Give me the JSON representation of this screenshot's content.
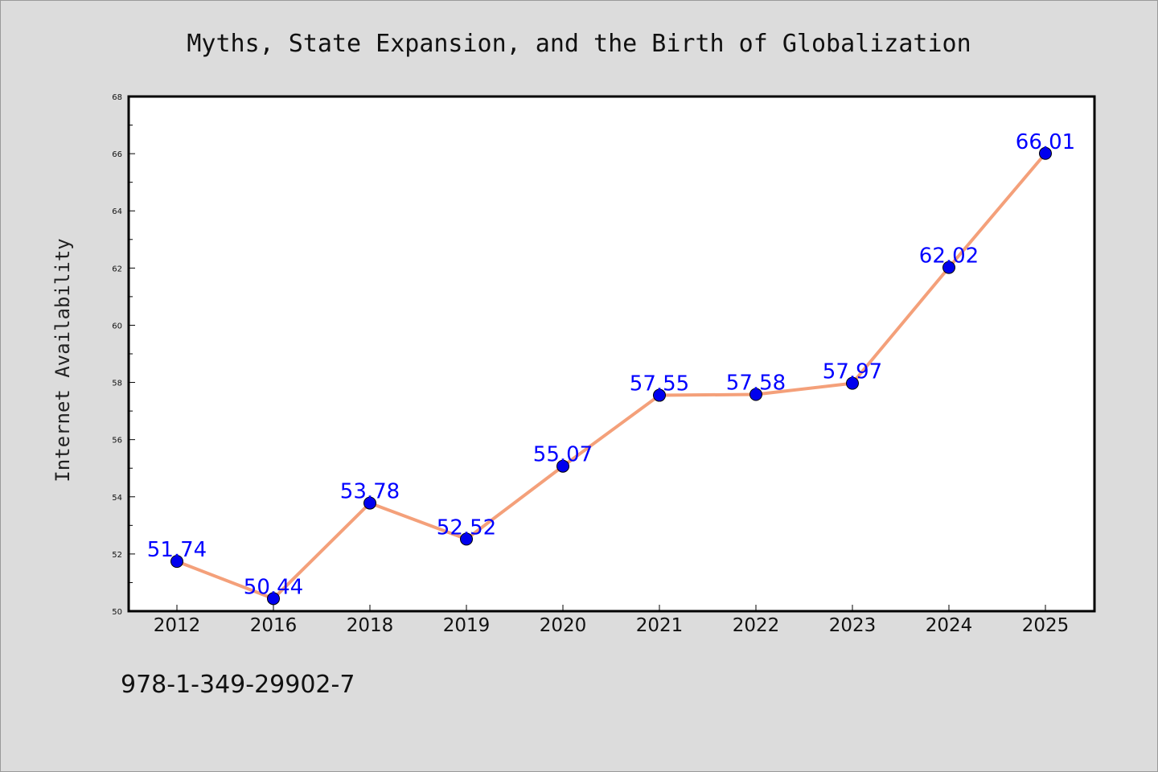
{
  "page": {
    "isbn": "978-1-349-29902-7"
  },
  "colors": {
    "background": "#dcdcdc",
    "plot_background": "#ffffff",
    "line": "#f4a07a",
    "marker": "#0000ee",
    "data_label": "#0000ff"
  },
  "chart_data": {
    "type": "line",
    "title": "Myths, State Expansion, and the Birth of Globalization",
    "xlabel": "",
    "ylabel": "Internet Availability",
    "categories": [
      "2012",
      "2016",
      "2018",
      "2019",
      "2020",
      "2021",
      "2022",
      "2023",
      "2024",
      "2025"
    ],
    "values": [
      51.74,
      50.44,
      53.78,
      52.52,
      55.07,
      57.55,
      57.58,
      57.97,
      62.02,
      66.01
    ],
    "data_labels": [
      "51.74",
      "50.44",
      "53.78",
      "52.52",
      "55.07",
      "57.55",
      "57.58",
      "57.97",
      "62.02",
      "66.01"
    ],
    "ylim": [
      50,
      68
    ],
    "yticks": [
      "50",
      "52",
      "54",
      "56",
      "58",
      "60",
      "62",
      "64",
      "66",
      "68"
    ],
    "grid": false,
    "legend": "none"
  }
}
